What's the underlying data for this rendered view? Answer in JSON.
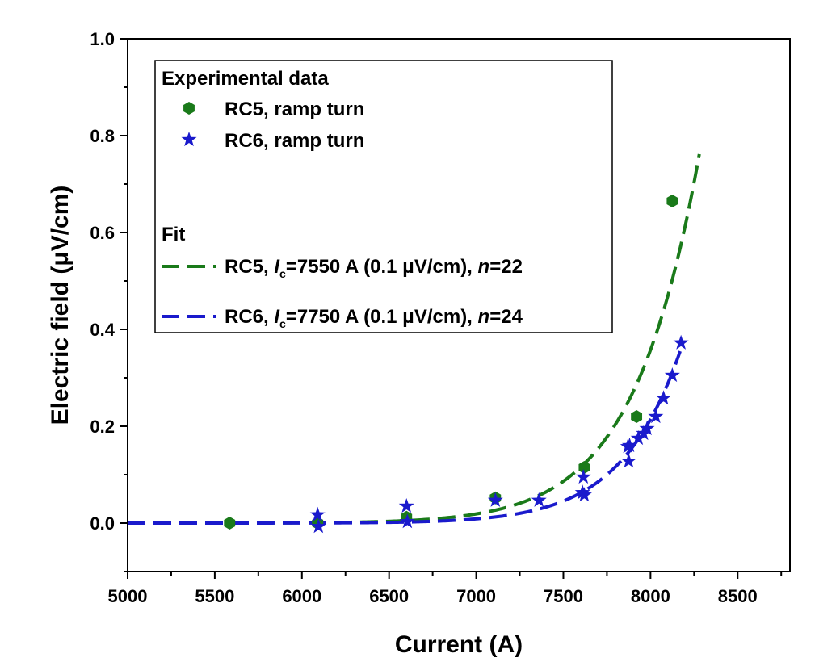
{
  "chart_data": {
    "type": "scatter",
    "xlabel": "Current (A)",
    "ylabel": "Electric field (μV/cm)",
    "xlim": [
      5000,
      8800
    ],
    "ylim": [
      -0.1,
      1.0
    ],
    "x_ticks": [
      5000,
      5500,
      6000,
      6500,
      7000,
      7500,
      8000,
      8500
    ],
    "y_ticks": [
      0.0,
      0.2,
      0.4,
      0.6,
      0.8,
      1.0
    ],
    "x_tick_labels": [
      "5000",
      "5500",
      "6000",
      "6500",
      "7000",
      "7500",
      "8000",
      "8500"
    ],
    "y_tick_labels": [
      "0.0",
      "0.2",
      "0.4",
      "0.6",
      "0.8",
      "1.0"
    ],
    "grid": false,
    "legend_position": "top-left",
    "legend": {
      "experimental_heading": "Experimental data",
      "fit_heading": "Fit",
      "fit_entries": [
        {
          "pre": "RC5, ",
          "ic_symbol": "I",
          "ic_sub": "c",
          "mid": "=7550 A (0.1 μV/cm), ",
          "n_symbol": "n",
          "post": "=22"
        },
        {
          "pre": "RC6, ",
          "ic_symbol": "I",
          "ic_sub": "c",
          "mid": "=7750 A (0.1 μV/cm), ",
          "n_symbol": "n",
          "post": "=24"
        }
      ]
    },
    "series": [
      {
        "name": "RC5, ramp turn",
        "kind": "scatter",
        "marker": "hexagon",
        "color": "#1a7a1a",
        "x": [
          5585,
          6090,
          6600,
          7110,
          7620,
          7920,
          8125
        ],
        "y": [
          0.0,
          0.0,
          0.012,
          0.052,
          0.115,
          0.22,
          0.665
        ]
      },
      {
        "name": "RC6, ramp turn",
        "kind": "scatter",
        "marker": "star",
        "color": "#1a1acc",
        "x": [
          6090,
          6095,
          6600,
          6605,
          7110,
          7360,
          7610,
          7615,
          7620,
          7870,
          7875,
          7880,
          7930,
          7960,
          7980,
          8030,
          8075,
          8125,
          8175
        ],
        "y": [
          0.017,
          -0.007,
          0.035,
          0.003,
          0.047,
          0.047,
          0.063,
          0.095,
          0.058,
          0.158,
          0.128,
          0.16,
          0.175,
          0.185,
          0.195,
          0.22,
          0.258,
          0.305,
          0.372
        ]
      },
      {
        "name": "RC5 fit",
        "kind": "fit",
        "ic": 7550,
        "n": 22,
        "e0": 0.1,
        "x_range": [
          5000,
          8285
        ],
        "color": "#1a7a1a"
      },
      {
        "name": "RC6 fit",
        "kind": "fit",
        "ic": 7750,
        "n": 24,
        "e0": 0.1,
        "x_range": [
          5000,
          8170
        ],
        "color": "#1a1acc"
      }
    ]
  }
}
